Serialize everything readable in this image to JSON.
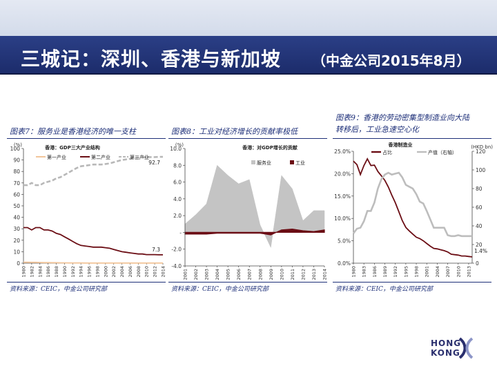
{
  "header": {
    "title": "三城记：深圳、香港与新加坡",
    "subtitle": "（中金公司2015年8月）"
  },
  "logo": {
    "line1": "HONG",
    "line2": "KONG"
  },
  "colors": {
    "title_bg": "#22347a",
    "caption": "#1c2e78",
    "dark_red": "#6b0d14",
    "gray": "#b8b8b8"
  },
  "chart_data": [
    {
      "type": "line",
      "caption": "图表7：服务业是香港经济的唯一支柱",
      "chart_title": "香港：GDP三大产业结构",
      "unit_label": "(%)",
      "source": "资料来源：CEIC，中金公司研究部",
      "x_ticks": [
        "1980",
        "1982",
        "1984",
        "1986",
        "1988",
        "1990",
        "1992",
        "1994",
        "1996",
        "1998",
        "2000",
        "2002",
        "2004",
        "2006",
        "2008",
        "2010",
        "2012",
        "2014"
      ],
      "y_ticks": [
        "0",
        "10",
        "20",
        "30",
        "40",
        "50",
        "60",
        "70",
        "80",
        "90",
        "100"
      ],
      "ylim": [
        0,
        100
      ],
      "x": [
        1980,
        1981,
        1982,
        1983,
        1984,
        1985,
        1986,
        1987,
        1988,
        1989,
        1990,
        1991,
        1992,
        1993,
        1994,
        1995,
        1996,
        1997,
        1998,
        1999,
        2000,
        2001,
        2002,
        2003,
        2004,
        2005,
        2006,
        2007,
        2008,
        2009,
        2010,
        2011,
        2012,
        2013,
        2014
      ],
      "series": [
        {
          "name": "第一产业",
          "color": "#f2c59a",
          "dash": false,
          "values": [
            0.8,
            0.8,
            0.7,
            0.7,
            0.6,
            0.5,
            0.5,
            0.4,
            0.4,
            0.3,
            0.3,
            0.2,
            0.2,
            0.2,
            0.2,
            0.1,
            0.1,
            0.1,
            0.1,
            0.1,
            0.1,
            0.1,
            0.1,
            0.1,
            0.1,
            0.1,
            0.1,
            0.1,
            0.1,
            0.1,
            0.1,
            0.1,
            0.1,
            0.1,
            0.1
          ]
        },
        {
          "name": "第二产业",
          "color": "#6b0d14",
          "dash": false,
          "values": [
            31,
            31,
            29,
            31,
            31,
            29,
            29,
            28,
            26,
            25,
            23,
            21,
            19,
            17,
            15.5,
            15,
            14.5,
            14,
            14,
            14,
            13.5,
            13,
            12,
            11,
            10,
            9.5,
            9,
            8.5,
            8,
            8,
            7.5,
            7.5,
            7.5,
            7.3,
            7.3
          ]
        },
        {
          "name": "第三产业",
          "color": "#b8b8b8",
          "dash": true,
          "values": [
            68,
            68,
            70,
            68,
            68,
            70,
            71,
            72,
            74,
            75,
            77,
            79,
            81,
            83,
            84.5,
            85,
            85.5,
            86,
            86,
            86,
            86.5,
            87,
            88,
            89,
            90,
            90.5,
            91,
            91.5,
            92,
            92,
            92.5,
            92.5,
            92.5,
            92.7,
            92.7
          ]
        }
      ],
      "annotations": [
        "92.7",
        "7.3"
      ]
    },
    {
      "type": "area",
      "caption": "图表8：工业对经济增长的贡献率极低",
      "chart_title": "香港：对GDP增长的贡献",
      "unit_label": "(%)",
      "source": "资料来源：CEIC，中金公司研究部",
      "x_ticks": [
        "2001",
        "2002",
        "2003",
        "2004",
        "2005",
        "2006",
        "2007",
        "2008",
        "2009",
        "2010",
        "2011",
        "2012",
        "2013",
        "2014"
      ],
      "y_ticks": [
        "-4.0",
        "-2.0",
        "-",
        "2.0",
        "4.0",
        "6.0",
        "8.0",
        "10.0"
      ],
      "ylim": [
        -4,
        10
      ],
      "x": [
        2001,
        2002,
        2003,
        2004,
        2005,
        2006,
        2007,
        2008,
        2009,
        2010,
        2011,
        2012,
        2013,
        2014
      ],
      "series": [
        {
          "name": "服务业",
          "color": "#c4c4c4",
          "values": [
            1.0,
            2.1,
            3.4,
            8.0,
            6.8,
            5.8,
            6.3,
            0.9,
            -1.8,
            6.8,
            5.2,
            1.4,
            2.6,
            2.6
          ]
        },
        {
          "name": "工业",
          "color": "#6b0d14",
          "values": [
            -0.2,
            -0.2,
            -0.2,
            -0.1,
            -0.1,
            -0.1,
            -0.1,
            -0.1,
            -0.3,
            0.3,
            0.4,
            0.2,
            0.1,
            0.3
          ]
        }
      ]
    },
    {
      "type": "line",
      "caption": "图表9：香港的劳动密集型制造业向大陆转移后，工业急速空心化",
      "caption_lines": [
        "图表9：香港的劳动密集型制造业向大陆",
        "转移后，工业急速空心化"
      ],
      "chart_title": "香港制造业",
      "right_unit_label": "(HKD bn)",
      "source": "资料来源：CEIC，中金公司研究部",
      "x_ticks": [
        "1980",
        "1983",
        "1986",
        "1989",
        "1992",
        "1995",
        "1998",
        "2001",
        "2004",
        "2007",
        "2010",
        "2013"
      ],
      "y_ticks_left": [
        "0.0%",
        "5.0%",
        "10.0%",
        "15.0%",
        "20.0%",
        "25.0%"
      ],
      "y_ticks_right": [
        "0",
        "20",
        "40",
        "60",
        "80",
        "100",
        "120"
      ],
      "ylim_left": [
        0,
        25
      ],
      "ylim_right": [
        0,
        120
      ],
      "x": [
        1980,
        1981,
        1982,
        1983,
        1984,
        1985,
        1986,
        1987,
        1988,
        1989,
        1990,
        1991,
        1992,
        1993,
        1994,
        1995,
        1996,
        1997,
        1998,
        1999,
        2000,
        2001,
        2002,
        2003,
        2004,
        2005,
        2006,
        2007,
        2008,
        2009,
        2010,
        2011,
        2012,
        2013,
        2014
      ],
      "series": [
        {
          "name": "占比",
          "axis": "left",
          "color": "#6b0d14",
          "values": [
            22.8,
            22,
            19.8,
            21.8,
            23.3,
            21.8,
            21.9,
            20.5,
            19.5,
            18.5,
            17,
            15.2,
            13.5,
            11.5,
            9.5,
            8,
            7.2,
            6.5,
            5.8,
            5.5,
            5.0,
            4.4,
            3.8,
            3.3,
            3.2,
            3.0,
            2.8,
            2.5,
            2.0,
            1.9,
            1.8,
            1.6,
            1.6,
            1.5,
            1.4
          ]
        },
        {
          "name": "产值（右轴）",
          "axis": "right",
          "color": "#bdbdbd",
          "values": [
            32,
            37,
            38,
            45,
            56,
            56,
            65,
            80,
            90,
            95,
            97,
            95,
            96,
            97,
            92,
            84,
            82,
            80,
            74,
            66,
            64,
            56,
            47,
            38,
            38,
            38,
            38,
            30,
            29,
            29,
            30,
            29,
            29,
            29,
            29
          ]
        }
      ],
      "annotations": [
        "1.4%"
      ]
    }
  ]
}
